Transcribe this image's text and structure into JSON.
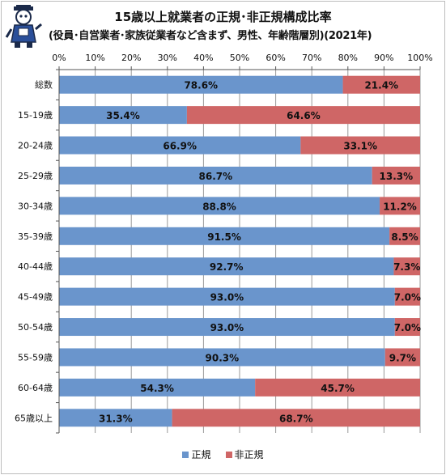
{
  "title": "15歳以上就業者の正規･非正規構成比率",
  "subtitle": "(役員･自営業者･家族従業者など含まず、男性、年齢階層別)(2021年)",
  "colors": {
    "regular": "#6a95cc",
    "nonregular": "#cf6666"
  },
  "chart_data": {
    "type": "bar",
    "orientation": "horizontal",
    "stacked": true,
    "percent": true,
    "categories": [
      "総数",
      "15-19歳",
      "20-24歳",
      "25-29歳",
      "30-34歳",
      "35-39歳",
      "40-44歳",
      "45-49歳",
      "50-54歳",
      "55-59歳",
      "60-64歳",
      "65歳以上"
    ],
    "series": [
      {
        "name": "正規",
        "values": [
          78.6,
          35.4,
          66.9,
          86.7,
          88.8,
          91.5,
          92.7,
          93.0,
          93.0,
          90.3,
          54.3,
          31.3
        ]
      },
      {
        "name": "非正規",
        "values": [
          21.4,
          64.6,
          33.1,
          13.3,
          11.2,
          8.5,
          7.3,
          7.0,
          7.0,
          9.7,
          45.7,
          68.7
        ]
      }
    ],
    "xlim": [
      0,
      100
    ],
    "xticks": [
      "0%",
      "10%",
      "20%",
      "30%",
      "40%",
      "50%",
      "60%",
      "70%",
      "80%",
      "90%",
      "100%"
    ],
    "grid": true,
    "legend": "bottom"
  }
}
